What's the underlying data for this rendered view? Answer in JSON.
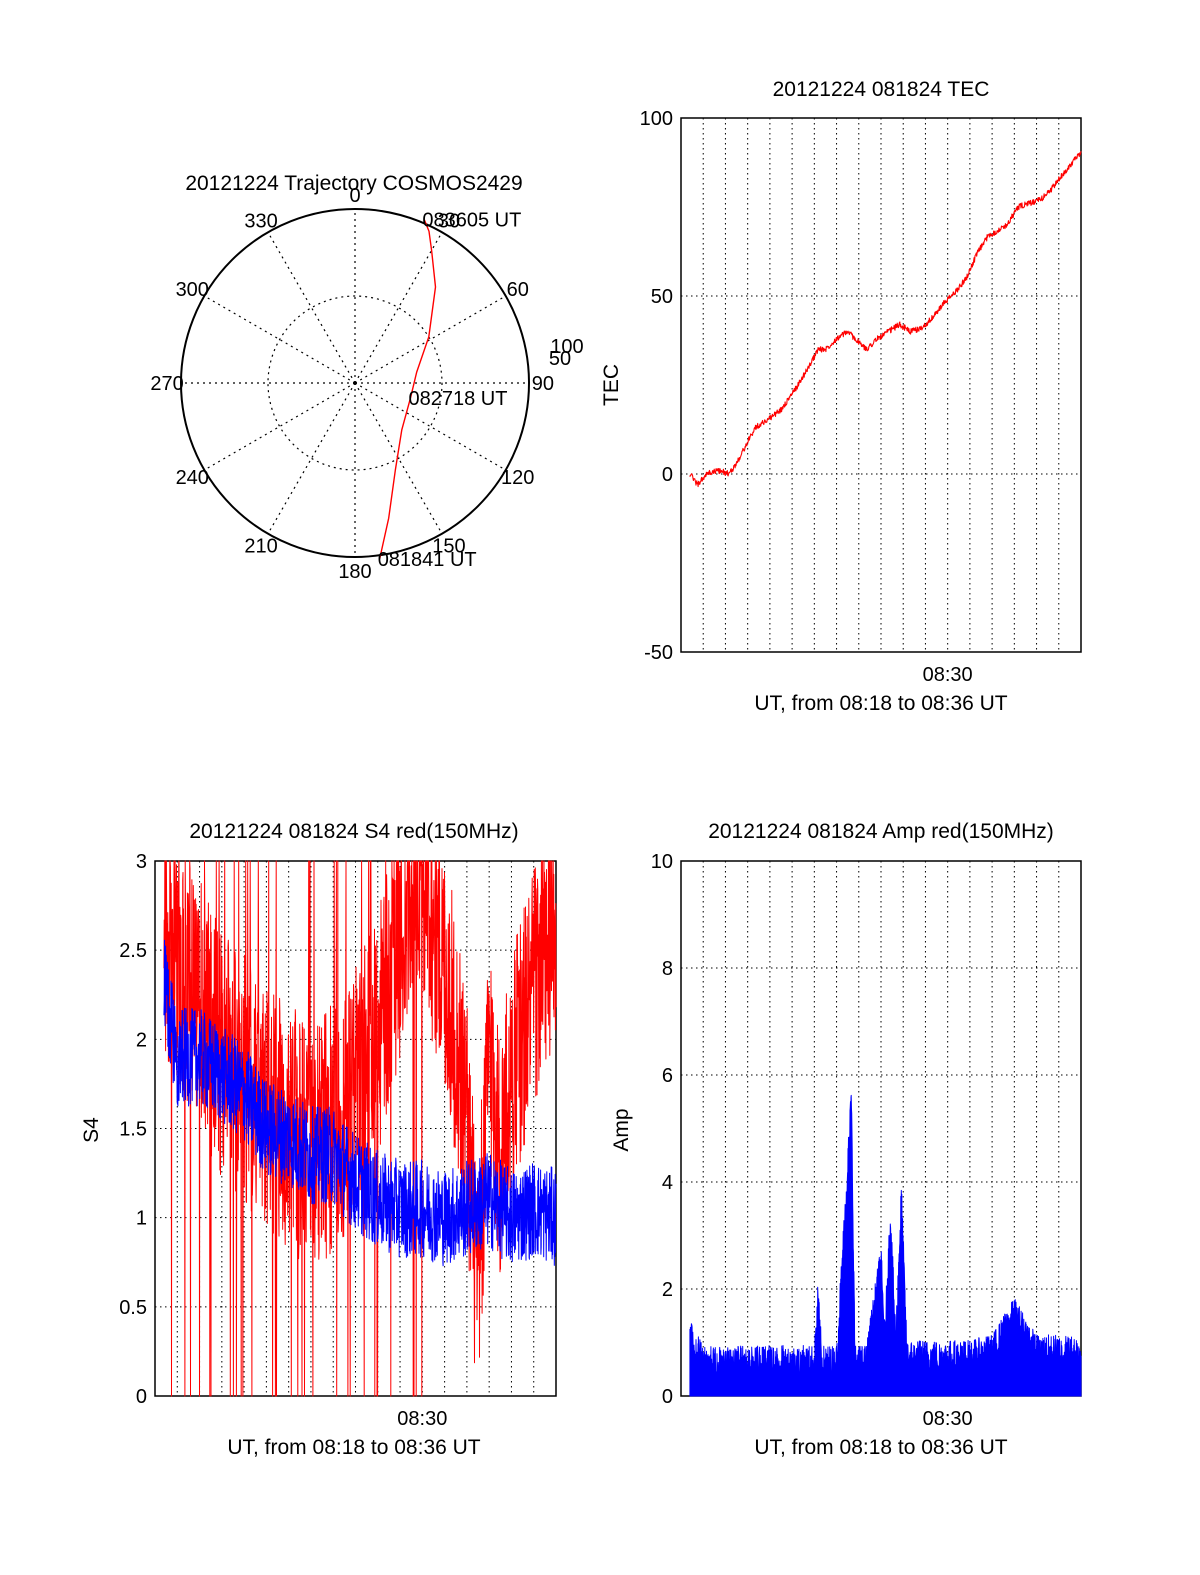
{
  "chart_data": [
    {
      "type": "polar",
      "title": "20121224 Trajectory COSMOS2429",
      "angle_labels": [
        "0",
        "30",
        "60",
        "90",
        "120",
        "150",
        "180",
        "210",
        "240",
        "270",
        "300",
        "330"
      ],
      "radial_ticks": [
        50,
        100
      ],
      "radial_labels": [
        "50",
        "100"
      ],
      "series": [
        {
          "color": "#ff0000",
          "points": [
            {
              "az": 172,
              "r": 102
            },
            {
              "az": 166,
              "r": 80
            },
            {
              "az": 155,
              "r": 55
            },
            {
              "az": 135,
              "r": 38
            },
            {
              "az": 105,
              "r": 33
            },
            {
              "az": 80,
              "r": 36
            },
            {
              "az": 58,
              "r": 50
            },
            {
              "az": 40,
              "r": 72
            },
            {
              "az": 30,
              "r": 88
            },
            {
              "az": 26,
              "r": 97
            },
            {
              "az": 23,
              "r": 102
            }
          ]
        }
      ],
      "annotations": [
        {
          "text": "083605 UT",
          "az": 23,
          "r": 102
        },
        {
          "text": "082718 UT",
          "az": 105,
          "r": 33
        },
        {
          "text": "081841 UT",
          "az": 172,
          "r": 102
        }
      ]
    },
    {
      "type": "line",
      "title": "20121224 081824 TEC",
      "xlabel": "UT, from 08:18 to 08:36 UT",
      "ylabel": "TEC",
      "xlim": [
        "08:18",
        "08:36"
      ],
      "ylim": [
        -50,
        100
      ],
      "yticks": [
        "100",
        "50",
        "0",
        "-50"
      ],
      "xticks": [
        "08:30"
      ],
      "grid": true,
      "series": [
        {
          "color": "#ff0000",
          "x": [
            "08:18:24",
            "08:18:45",
            "08:19:10",
            "08:19:40",
            "08:20:10",
            "08:20:30",
            "08:20:50",
            "08:21:20",
            "08:21:50",
            "08:22:30",
            "08:23:10",
            "08:23:50",
            "08:24:10",
            "08:24:30",
            "08:25:00",
            "08:25:30",
            "08:26:00",
            "08:26:20",
            "08:26:50",
            "08:27:20",
            "08:27:50",
            "08:28:20",
            "08:28:50",
            "08:29:20",
            "08:29:50",
            "08:30:20",
            "08:30:50",
            "08:31:20",
            "08:31:50",
            "08:32:10",
            "08:32:40",
            "08:33:10",
            "08:33:40",
            "08:34:10",
            "08:34:40",
            "08:35:10",
            "08:35:40",
            "08:36:00"
          ],
          "y": [
            0,
            -3,
            0,
            1,
            0,
            3,
            7,
            13,
            15,
            18,
            24,
            31,
            35,
            35,
            38,
            40,
            37,
            35,
            38,
            40,
            42,
            40,
            41,
            44,
            48,
            51,
            55,
            62,
            67,
            68,
            70,
            75,
            76,
            77,
            80,
            84,
            88,
            90
          ]
        }
      ]
    },
    {
      "type": "line",
      "title": "20121224 081824 S4 red(150MHz)",
      "xlabel": "UT, from 08:18 to 08:36 UT",
      "ylabel": "S4",
      "xlim": [
        "08:18",
        "08:36"
      ],
      "ylim": [
        0,
        3
      ],
      "yticks": [
        "3",
        "2.5",
        "2",
        "1.5",
        "1",
        "0.5",
        "0"
      ],
      "xticks": [
        "08:30"
      ],
      "grid": true,
      "series": [
        {
          "color": "#ff0000",
          "x": [
            "08:18:24",
            "08:19:00",
            "08:20:00",
            "08:21:00",
            "08:22:00",
            "08:23:00",
            "08:24:00",
            "08:25:00",
            "08:26:00",
            "08:27:00",
            "08:28:00",
            "08:29:00",
            "08:30:00",
            "08:31:00",
            "08:31:30",
            "08:32:00",
            "08:32:30",
            "08:33:00",
            "08:33:30",
            "08:34:00",
            "08:35:00",
            "08:36:00"
          ],
          "y": [
            2.6,
            2.4,
            2.2,
            1.9,
            1.8,
            1.6,
            1.5,
            1.4,
            1.5,
            1.7,
            2.0,
            2.6,
            2.9,
            2.4,
            2.0,
            1.6,
            0.5,
            2.0,
            1.3,
            1.8,
            2.3,
            2.6
          ],
          "note": "dense noisy trace with frequent spikes from 0 to 3 through 08:30"
        },
        {
          "color": "#0000ff",
          "x": [
            "08:18:24",
            "08:19:00",
            "08:20:00",
            "08:21:00",
            "08:22:00",
            "08:23:00",
            "08:24:00",
            "08:25:00",
            "08:26:00",
            "08:27:00",
            "08:28:00",
            "08:29:00",
            "08:30:00",
            "08:31:00",
            "08:32:00",
            "08:33:00",
            "08:34:00",
            "08:35:00",
            "08:36:00"
          ],
          "y": [
            2.3,
            1.9,
            1.9,
            1.8,
            1.7,
            1.5,
            1.45,
            1.35,
            1.35,
            1.2,
            1.1,
            1.05,
            1.05,
            1.0,
            1.05,
            1.1,
            1.0,
            1.05,
            1.0
          ]
        }
      ]
    },
    {
      "type": "line",
      "title": "20121224 081824 Amp red(150MHz)",
      "xlabel": "UT, from 08:18 to 08:36 UT",
      "ylabel": "Amp",
      "xlim": [
        "08:18",
        "08:36"
      ],
      "ylim": [
        0,
        10
      ],
      "yticks": [
        "10",
        "8",
        "6",
        "4",
        "2",
        "0"
      ],
      "xticks": [
        "08:30"
      ],
      "grid": true,
      "series": [
        {
          "color": "#0000ff",
          "x": [
            "08:18:24",
            "08:19:00",
            "08:20:00",
            "08:21:00",
            "08:22:00",
            "08:23:00",
            "08:24:00",
            "08:24:10",
            "08:24:20",
            "08:25:00",
            "08:25:40",
            "08:25:50",
            "08:26:00",
            "08:26:20",
            "08:27:00",
            "08:27:10",
            "08:27:25",
            "08:27:40",
            "08:27:55",
            "08:28:10",
            "08:29:00",
            "08:30:00",
            "08:31:00",
            "08:32:00",
            "08:33:00",
            "08:34:00",
            "08:35:00",
            "08:36:00"
          ],
          "y": [
            1.1,
            0.6,
            0.55,
            0.6,
            0.6,
            0.6,
            0.6,
            1.8,
            0.6,
            0.6,
            5.5,
            0.6,
            0.6,
            0.6,
            2.5,
            1.0,
            3.3,
            1.0,
            3.7,
            0.7,
            0.7,
            0.7,
            0.7,
            0.8,
            1.5,
            0.8,
            0.8,
            0.8
          ]
        }
      ]
    }
  ]
}
